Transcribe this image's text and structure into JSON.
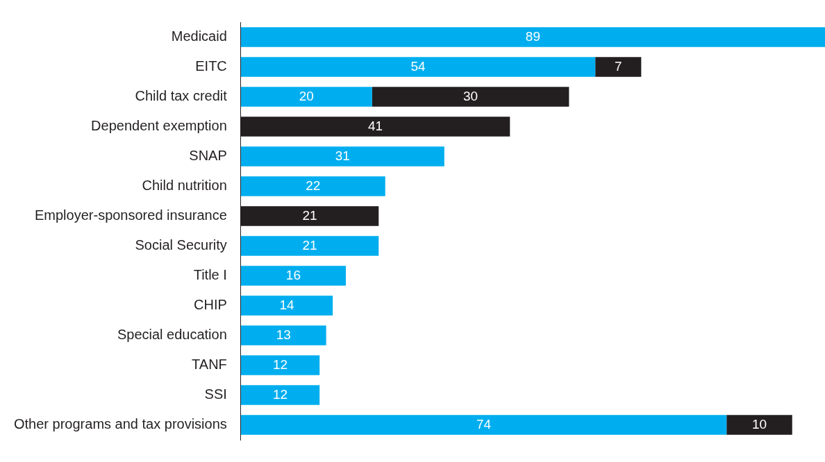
{
  "chart_data": {
    "type": "bar",
    "orientation": "horizontal",
    "stacked": true,
    "data_labels": true,
    "legend": false,
    "tick_labels": "y",
    "categories": [
      "Medicaid",
      "EITC",
      "Child tax credit",
      "Dependent exemption",
      "SNAP",
      "Child nutrition",
      "Employer-sponsored insurance",
      "Social Security",
      "Title I",
      "CHIP",
      "Special education",
      "TANF",
      "SSI",
      "Other programs and tax provisions"
    ],
    "series": [
      {
        "color": "#00aeef",
        "values": [
          89,
          54,
          20,
          null,
          31,
          22,
          null,
          21,
          16,
          14,
          13,
          12,
          12,
          74
        ]
      },
      {
        "color": "#231f20",
        "values": [
          null,
          7,
          30,
          41,
          null,
          null,
          21,
          null,
          null,
          null,
          null,
          null,
          null,
          10
        ]
      }
    ]
  }
}
